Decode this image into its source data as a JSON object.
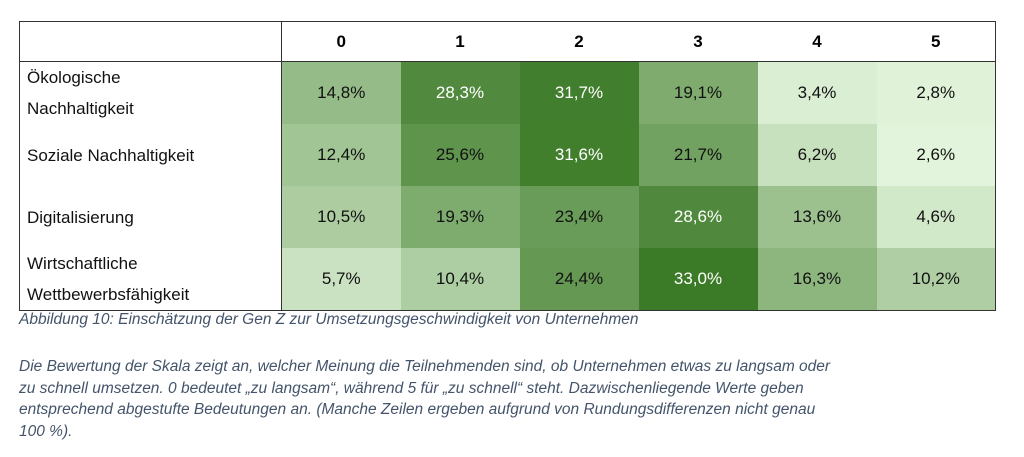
{
  "table": {
    "columns": [
      "0",
      "1",
      "2",
      "3",
      "4",
      "5"
    ],
    "rows": [
      {
        "label_lines": [
          "Ökologische",
          "Nachhaltigkeit"
        ],
        "values": [
          "14,8%",
          "28,3%",
          "31,7%",
          "19,1%",
          "3,4%",
          "2,8%"
        ]
      },
      {
        "label_lines": [
          "Soziale Nachhaltigkeit"
        ],
        "values": [
          "12,4%",
          "25,6%",
          "31,6%",
          "21,7%",
          "6,2%",
          "2,6%"
        ]
      },
      {
        "label_lines": [
          "Digitalisierung"
        ],
        "values": [
          "10,5%",
          "19,3%",
          "23,4%",
          "28,6%",
          "13,6%",
          "4,6%"
        ]
      },
      {
        "label_lines": [
          "Wirtschaftliche",
          "Wettbewerbsfähigkeit"
        ],
        "values": [
          "5,7%",
          "10,4%",
          "24,4%",
          "33,0%",
          "16,3%",
          "10,2%"
        ]
      }
    ]
  },
  "caption": "Abbildung 10: Einschätzung der Gen Z zur Umsetzungsgeschwindigkeit von Unternehmen",
  "note_lines": [
    "Die Bewertung der Skala zeigt an, welcher Meinung die Teilnehmenden sind, ob Unternehmen etwas zu langsam oder",
    "zu schnell umsetzen. 0 bedeutet „zu langsam“, während 5 für „zu schnell“ steht. Dazwischenliegende Werte geben",
    "entsprechend abgestufte Bedeutungen an. (Manche Zeilen ergeben aufgrund von Rundungsdifferenzen nicht genau",
    "100 %)."
  ],
  "colors": {
    "heat_low": "#e2f4db",
    "heat_high": "#3b7a26",
    "caption_text": "#44546a"
  }
}
